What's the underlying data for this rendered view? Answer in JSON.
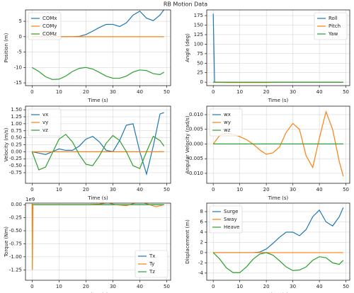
{
  "title": "RB Motion Data",
  "chart_data": [
    {
      "type": "line",
      "ylabel": "Position (m)",
      "xlabel": "Time (s)",
      "x": [
        0,
        2.5,
        5,
        7.5,
        10,
        12.5,
        15,
        17.5,
        20,
        22.5,
        25,
        27.5,
        30,
        32.5,
        35,
        37.5,
        40,
        42.5,
        45,
        47.5,
        49
      ],
      "series": [
        {
          "name": "COMx",
          "color": "#1f77b4",
          "values": [
            0,
            0,
            0,
            0,
            0,
            0,
            0,
            0.1,
            0.7,
            1.8,
            3,
            4,
            4,
            3.3,
            4.5,
            7,
            8.3,
            6,
            5.2,
            7,
            8.8
          ]
        },
        {
          "name": "COMy",
          "color": "#ff7f0e",
          "values": [
            0,
            0,
            0,
            0,
            0,
            0,
            0,
            0,
            0,
            0,
            0,
            0,
            0,
            0,
            0,
            0,
            0,
            0,
            0,
            0,
            0
          ]
        },
        {
          "name": "COMz",
          "color": "#2ca02c",
          "values": [
            -10,
            -11.3,
            -13,
            -13.9,
            -13.8,
            -12.8,
            -11.3,
            -10.3,
            -10,
            -10.5,
            -11.6,
            -12.8,
            -13.5,
            -13.5,
            -12.8,
            -11.5,
            -10.8,
            -11,
            -12,
            -12.3,
            -11.5
          ]
        }
      ],
      "xlim": [
        -2.45,
        51.45
      ],
      "xticks": [
        0,
        10,
        20,
        30,
        40,
        50
      ],
      "ylim": [
        -15.9,
        8.7
      ],
      "yticks": [
        -15,
        -10,
        -5,
        0,
        5
      ],
      "grid": true,
      "legend": "upper left"
    },
    {
      "type": "line",
      "ylabel": "Angle (deg)",
      "xlabel": "Time (s)",
      "x": [
        0,
        0.5,
        5,
        10,
        15,
        20,
        25,
        30,
        35,
        40,
        45,
        49
      ],
      "series": [
        {
          "name": "Roll",
          "color": "#1f77b4",
          "values": [
            180,
            0,
            0,
            0,
            0,
            0,
            0,
            0,
            0,
            0,
            0,
            0
          ]
        },
        {
          "name": "Pitch",
          "color": "#ff7f0e",
          "values": [
            0,
            0,
            -1,
            -1,
            -1,
            -1,
            0,
            0,
            0,
            0,
            0,
            0
          ]
        },
        {
          "name": "Yaw",
          "color": "#2ca02c",
          "values": [
            0,
            0,
            0,
            0,
            0,
            0,
            0,
            0,
            0,
            0,
            0,
            0
          ]
        }
      ],
      "xlim": [
        -2.45,
        51.45
      ],
      "xticks": [
        0,
        10,
        20,
        30,
        40,
        50
      ],
      "ylim": [
        -9,
        190
      ],
      "yticks": [
        0,
        25,
        50,
        75,
        100,
        125,
        150,
        175
      ],
      "grid": true,
      "legend": "upper right"
    },
    {
      "type": "line",
      "ylabel": "Velocity (m/s)",
      "xlabel": "Time (s)",
      "x": [
        0,
        2.5,
        5,
        7.5,
        10,
        12.5,
        15,
        17.5,
        20,
        22.5,
        25,
        27.5,
        30,
        32.5,
        35,
        37.5,
        40,
        42.5,
        45,
        47.5,
        49
      ],
      "series": [
        {
          "name": "vx",
          "color": "#1f77b4",
          "values": [
            0,
            -0.05,
            -0.1,
            0,
            0.1,
            0.05,
            0.05,
            0.2,
            0.45,
            0.55,
            0.35,
            0.05,
            0,
            0.4,
            0.95,
            1.0,
            0,
            -0.8,
            0.2,
            1.35,
            1.4
          ]
        },
        {
          "name": "vy",
          "color": "#ff7f0e",
          "values": [
            0,
            0,
            0,
            0,
            0,
            0,
            0,
            0,
            0,
            0,
            0,
            0,
            0,
            0,
            0,
            0,
            0,
            0,
            0,
            0,
            0
          ]
        },
        {
          "name": "vz",
          "color": "#2ca02c",
          "values": [
            0,
            -0.65,
            -0.55,
            -0.05,
            0.45,
            0.62,
            0.35,
            -0.1,
            -0.45,
            -0.5,
            -0.15,
            0.3,
            0.58,
            0.4,
            0,
            -0.5,
            -0.6,
            0,
            0.55,
            0.4,
            0.2
          ]
        }
      ],
      "xlim": [
        -2.45,
        51.45
      ],
      "xticks": [
        0,
        10,
        20,
        30,
        40,
        50
      ],
      "ylim": [
        -1.13,
        1.63
      ],
      "yticks": [
        -0.75,
        {
          "value": -0.5,
          "label": "-0.50"
        },
        -0.25,
        {
          "value": 0,
          "label": "0.00"
        },
        0.25,
        {
          "value": 0.5,
          "label": "0.50"
        },
        0.75,
        {
          "value": 1,
          "label": "1.00"
        },
        1.25,
        {
          "value": 1.5,
          "label": "1.50"
        }
      ],
      "grid": true,
      "legend": "upper left"
    },
    {
      "type": "line",
      "ylabel": "Angular Velocity (rad/s)",
      "xlabel": "Time (s)",
      "x": [
        0,
        2.5,
        5,
        7.5,
        10,
        12.5,
        15,
        17.5,
        20,
        22.5,
        25,
        27.5,
        30,
        32.5,
        35,
        37.5,
        40,
        42.5,
        45,
        47.5,
        49
      ],
      "series": [
        {
          "name": "wx",
          "color": "#1f77b4",
          "values": [
            0,
            0,
            0,
            0,
            0,
            0,
            0,
            0,
            0,
            0,
            0,
            0,
            0,
            0,
            0,
            0,
            0,
            0,
            0,
            0,
            0
          ]
        },
        {
          "name": "wy",
          "color": "#ff7f0e",
          "values": [
            0,
            0.003,
            0.0037,
            0.0033,
            0.0025,
            0.0015,
            0,
            -0.002,
            -0.0035,
            -0.003,
            -0.001,
            0.004,
            0.007,
            0.005,
            -0.004,
            -0.008,
            0.002,
            0.011,
            0.005,
            -0.006,
            -0.011
          ]
        },
        {
          "name": "wz",
          "color": "#2ca02c",
          "values": [
            0,
            0,
            0,
            0,
            0,
            0,
            0,
            0,
            0,
            0,
            0,
            0,
            0,
            0,
            0,
            0,
            0,
            0,
            0,
            0,
            0
          ]
        }
      ],
      "xlim": [
        -2.45,
        51.45
      ],
      "xticks": [
        0,
        10,
        20,
        30,
        40,
        50
      ],
      "ylim": [
        -0.0134,
        0.0129
      ],
      "yticks": [
        {
          "value": -0.01,
          "label": "-0.010"
        },
        -0.005,
        {
          "value": 0,
          "label": "0.000"
        },
        0.005,
        {
          "value": 0.01,
          "label": "0.010"
        }
      ],
      "grid": true,
      "legend": "upper left"
    },
    {
      "type": "line",
      "ylabel": "Torque (Nm)",
      "xlabel": "Time (s)",
      "offset_label": "1e9",
      "x": [
        0,
        0.1,
        0.3,
        5,
        10,
        15,
        20,
        25,
        28,
        31,
        35,
        40,
        43,
        46,
        49
      ],
      "series": [
        {
          "name": "Tx",
          "color": "#1f77b4",
          "values": [
            0,
            0,
            0,
            0,
            0,
            0,
            0,
            0,
            0,
            0,
            0,
            0,
            0,
            0,
            0
          ]
        },
        {
          "name": "Ty",
          "color": "#ff7f0e",
          "values": [
            0.02,
            -1.25,
            0,
            0,
            0,
            0,
            0,
            0.01,
            0.04,
            0,
            -0.02,
            0.06,
            0.01,
            -0.04,
            0
          ]
        },
        {
          "name": "Tz",
          "color": "#2ca02c",
          "values": [
            0,
            0,
            0,
            0,
            0,
            0,
            0,
            0,
            0,
            0,
            0,
            0,
            0,
            0,
            0
          ]
        }
      ],
      "xlim": [
        -2.45,
        51.45
      ],
      "xticks": [
        0,
        10,
        20,
        30,
        40,
        50
      ],
      "ylim": [
        -1.45,
        0.03
      ],
      "yticks": [
        -1.25,
        {
          "value": -1,
          "label": "-1.00"
        },
        -0.75,
        {
          "value": -0.5,
          "label": "-0.50"
        },
        -0.25,
        {
          "value": 0,
          "label": "0.00"
        }
      ],
      "grid": true,
      "legend": "lower right"
    },
    {
      "type": "line",
      "ylabel": "Displacement (m)",
      "xlabel": "Time (s)",
      "x": [
        0,
        2.5,
        5,
        7.5,
        10,
        12.5,
        15,
        17.5,
        20,
        22.5,
        25,
        27.5,
        30,
        32.5,
        35,
        37.5,
        40,
        42.5,
        45,
        47.5,
        49
      ],
      "series": [
        {
          "name": "Surge",
          "color": "#1f77b4",
          "values": [
            0,
            0,
            0,
            0,
            0,
            0,
            0,
            0.1,
            0.7,
            1.8,
            3,
            4,
            4,
            3.3,
            4.5,
            7,
            8.3,
            6,
            5.2,
            7,
            8.8
          ]
        },
        {
          "name": "Sway",
          "color": "#ff7f0e",
          "values": [
            0,
            0,
            0,
            0,
            0,
            0,
            0,
            0,
            0,
            0,
            0,
            0,
            0,
            0,
            0,
            0,
            0,
            0,
            0,
            0,
            0
          ]
        },
        {
          "name": "Heave",
          "color": "#2ca02c",
          "values": [
            0,
            -1.3,
            -3,
            -3.9,
            -3.9,
            -2.8,
            -1.3,
            -0.3,
            0,
            -0.5,
            -1.6,
            -2.8,
            -3.5,
            -3.4,
            -2.8,
            -1.5,
            -0.8,
            -1,
            -2,
            -2.3,
            -1.5
          ]
        }
      ],
      "xlim": [
        -2.45,
        51.45
      ],
      "xticks": [
        0,
        10,
        20,
        30,
        40,
        50
      ],
      "ylim": [
        -5.4,
        9.66
      ],
      "yticks": [
        -4,
        -2,
        0,
        2,
        4,
        6,
        8
      ],
      "grid": true,
      "legend": "upper left"
    }
  ]
}
